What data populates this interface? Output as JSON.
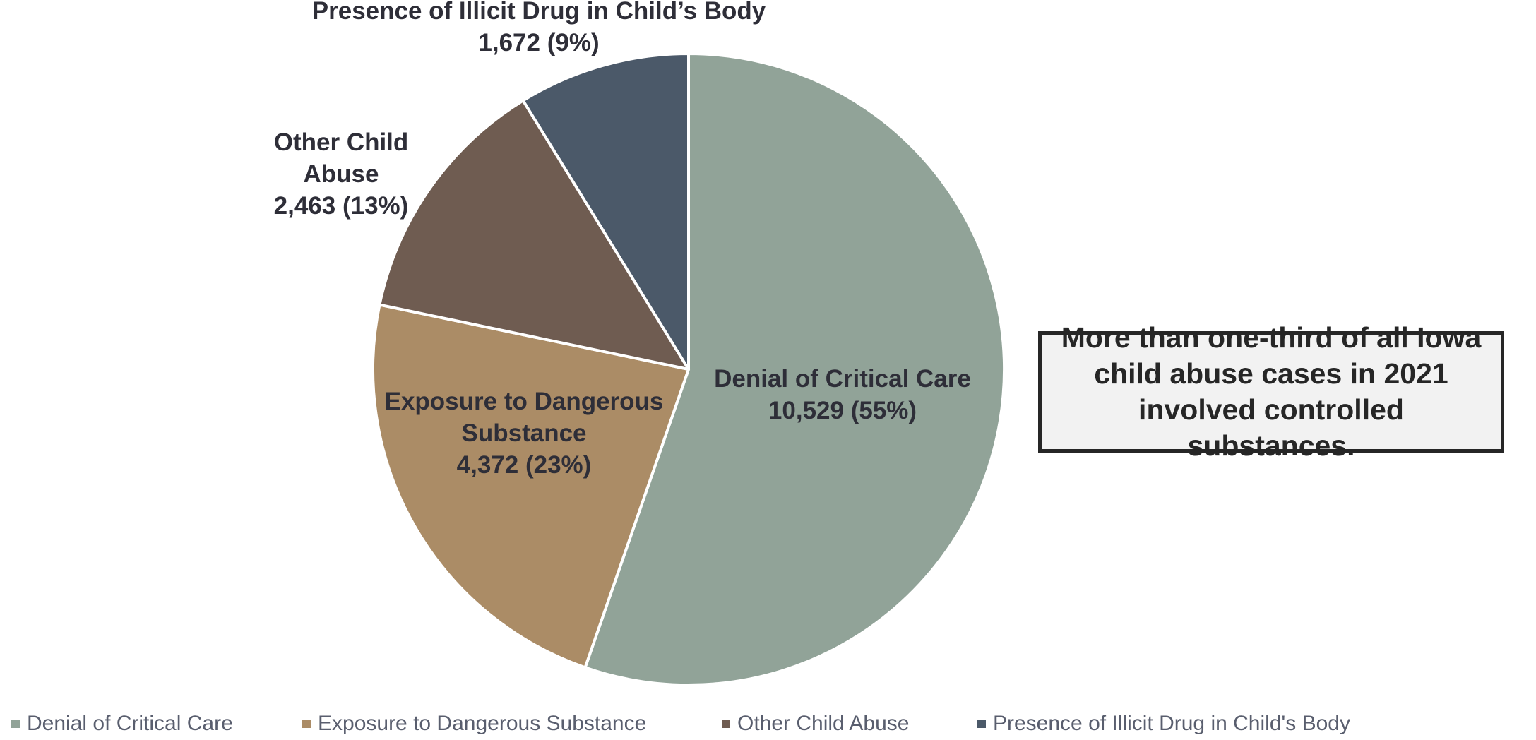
{
  "chart_data": {
    "type": "pie",
    "title": "",
    "slices": [
      {
        "category": "Denial of Critical Care",
        "value": 10529,
        "value_label": "10,529 (55%)",
        "color": "#91a398"
      },
      {
        "category": "Exposure to Dangerous Substance",
        "value": 4372,
        "value_label": "4,372 (23%)",
        "color": "#ab8c66"
      },
      {
        "category": "Other Child Abuse",
        "value": 2463,
        "value_label": "2,463 (13%)",
        "color": "#6f5c51"
      },
      {
        "category": "Presence of Illicit Drug in Child’s Body",
        "value": 1672,
        "value_label": "1,672 (9%)",
        "color": "#4b5969"
      }
    ],
    "slice_label_lines": [
      [
        "Denial of Critical Care"
      ],
      [
        "Exposure to Dangerous",
        "Substance"
      ],
      [
        "Other Child",
        "Abuse"
      ],
      [
        "Presence of Illicit Drug in Child’s Body"
      ]
    ],
    "legend": {
      "position": "bottom",
      "entries": [
        "Denial of Critical Care",
        "Exposure to Dangerous Substance",
        "Other Child Abuse",
        "Presence of Illicit Drug in Child's Body"
      ]
    },
    "start_angle": "12 o'clock",
    "direction": "clockwise"
  },
  "callout": {
    "text": "More than one-third of all Iowa child abuse cases in 2021 involved controlled substances."
  }
}
